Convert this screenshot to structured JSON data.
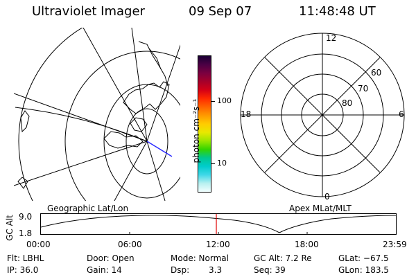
{
  "header": {
    "instrument": "Ultraviolet Imager",
    "date": "09 Sep 07",
    "time": "11:48:48 UT"
  },
  "colorbar": {
    "unit_label": "photon cm⁻²s⁻¹",
    "tick_100": "100",
    "tick_10": "10",
    "colors": [
      "#1a0033",
      "#4b0044",
      "#7a0040",
      "#a6002a",
      "#d40016",
      "#ff2a00",
      "#ff6400",
      "#ff9a00",
      "#ffcc00",
      "#e8e800",
      "#9be600",
      "#33d400",
      "#00c890",
      "#00cccc",
      "#40d8e8",
      "#b8f0f0",
      "#f2ffff"
    ]
  },
  "maps": {
    "left_label": "Geographic Lat/Lon",
    "right_label": "Apex MLat/MLT",
    "polar": {
      "mlt_12": "12",
      "mlt_18": "18",
      "mlt_6": "6",
      "mlt_0": "0",
      "lat_60": "60",
      "lat_70": "70",
      "lat_80": "80"
    }
  },
  "altitude_plot": {
    "ylabel": "GC Alt",
    "ytick_high": "9.0",
    "ytick_low": "1.8",
    "xticks": [
      "00:00",
      "06:00",
      "12:00",
      "18:00",
      "23:59"
    ],
    "marker_color": "#e00000"
  },
  "info": {
    "flt": "Flt: LBHL",
    "ip": "IP: 36.0",
    "door": "Door: Open",
    "gain": "Gain: 14",
    "mode": "Mode: Normal",
    "dsp_label": "Dsp:",
    "dsp_value": "3.3",
    "gc_alt": "GC Alt: 7.2 Re",
    "seq": "Seq: 39",
    "glat": "GLat: −67.5",
    "glon": "GLon: 183.5"
  }
}
